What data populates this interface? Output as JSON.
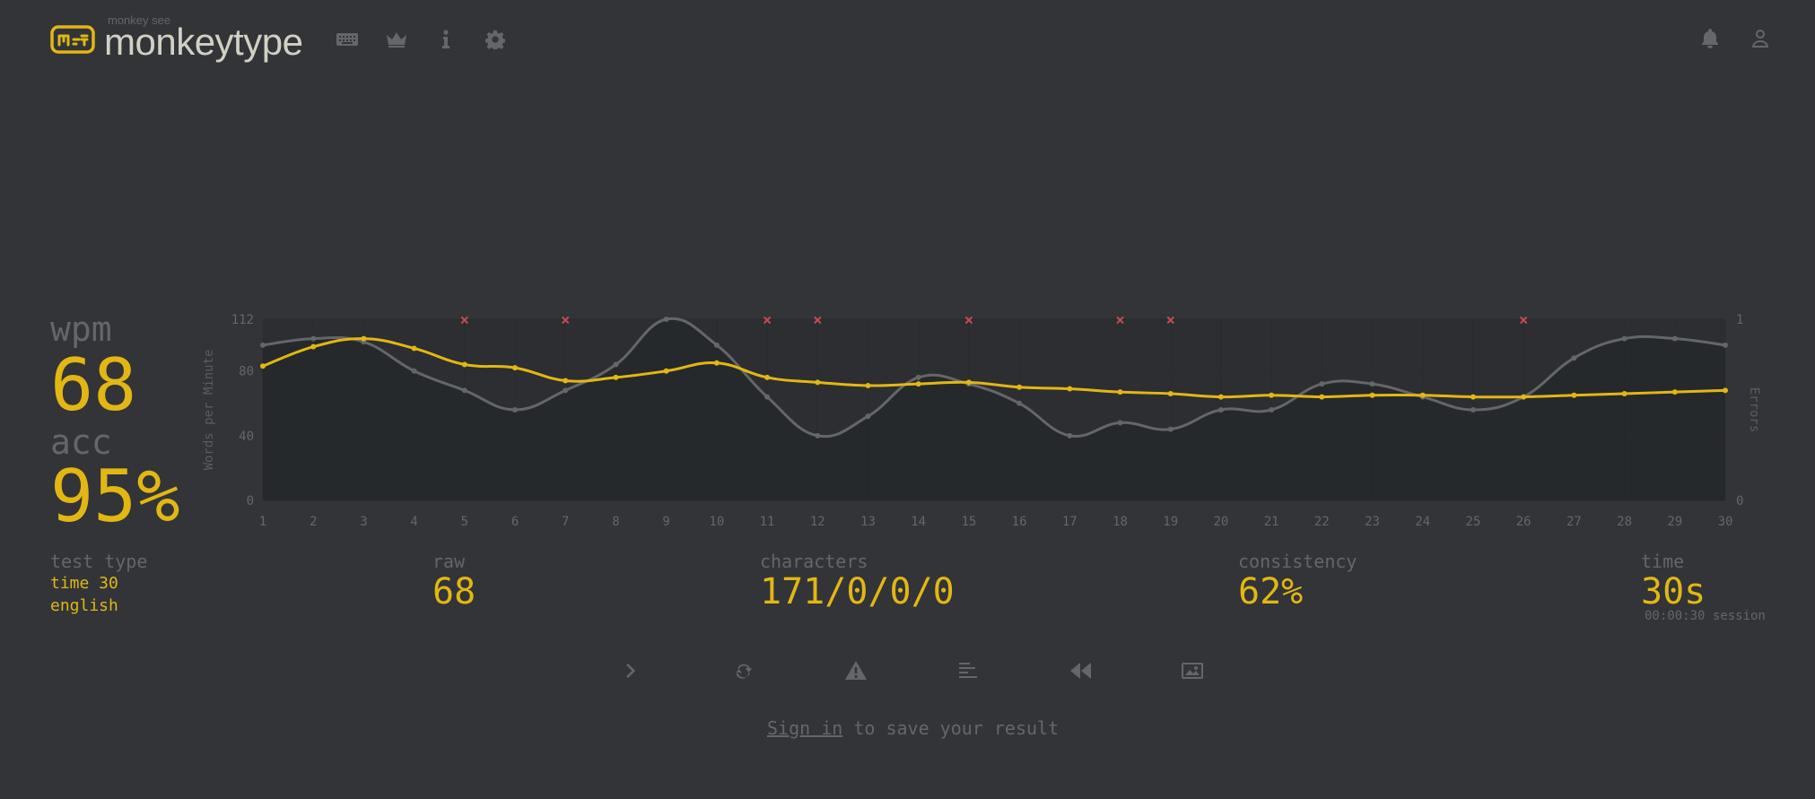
{
  "header": {
    "brand_sub": "monkey see",
    "brand": "monkeytype"
  },
  "icons": {
    "nav": [
      "keyboard-icon",
      "crown-icon",
      "info-icon",
      "gear-icon"
    ],
    "right": [
      "bell-icon",
      "user-icon"
    ],
    "actions": [
      "chevron-right-icon",
      "restart-icon",
      "warning-icon",
      "word-history-icon",
      "replay-icon",
      "screenshot-icon"
    ]
  },
  "colors": {
    "bg": "#323437",
    "main": "#e2b714",
    "sub": "#646669",
    "text": "#d1d0c5",
    "error": "#ca4754",
    "raw": "#646669"
  },
  "result": {
    "wpm_label": "wpm",
    "wpm": "68",
    "acc_label": "acc",
    "acc": "95%"
  },
  "stats": {
    "test_type_label": "test type",
    "test_type_mode": "time 30",
    "test_type_language": "english",
    "raw_label": "raw",
    "raw": "68",
    "characters_label": "characters",
    "characters": "171/0/0/0",
    "consistency_label": "consistency",
    "consistency": "62%",
    "time_label": "time",
    "time": "30s",
    "session": "00:00:30 session"
  },
  "signin": {
    "link": "Sign in",
    "rest": " to save your result"
  },
  "chart_data": {
    "type": "line",
    "x": [
      1,
      2,
      3,
      4,
      5,
      6,
      7,
      8,
      9,
      10,
      11,
      12,
      13,
      14,
      15,
      16,
      17,
      18,
      19,
      20,
      21,
      22,
      23,
      24,
      25,
      26,
      27,
      28,
      29,
      30
    ],
    "ylabel": "Words per Minute",
    "y2label": "Errors",
    "ylim": [
      0,
      112
    ],
    "yticks": [
      0,
      40,
      80,
      112
    ],
    "y2lim": [
      0,
      1
    ],
    "y2ticks": [
      0,
      1
    ],
    "series": [
      {
        "values": [
          96,
          100,
          98,
          80,
          68,
          56,
          68,
          84,
          112,
          96,
          64,
          40,
          52,
          76,
          72,
          60,
          40,
          48,
          44,
          56,
          56,
          72,
          72,
          64,
          56,
          64,
          88,
          100,
          100,
          96
        ]
      },
      {
        "values": [
          83,
          95,
          100,
          94,
          84,
          82,
          74,
          76,
          80,
          85,
          76,
          73,
          71,
          72,
          73,
          70,
          69,
          67,
          66,
          64,
          65,
          64,
          65,
          65,
          64,
          64,
          65,
          66,
          67,
          68
        ]
      }
    ],
    "errors_at": [
      5,
      7,
      11,
      12,
      15,
      18,
      19,
      26
    ],
    "grid": true
  }
}
